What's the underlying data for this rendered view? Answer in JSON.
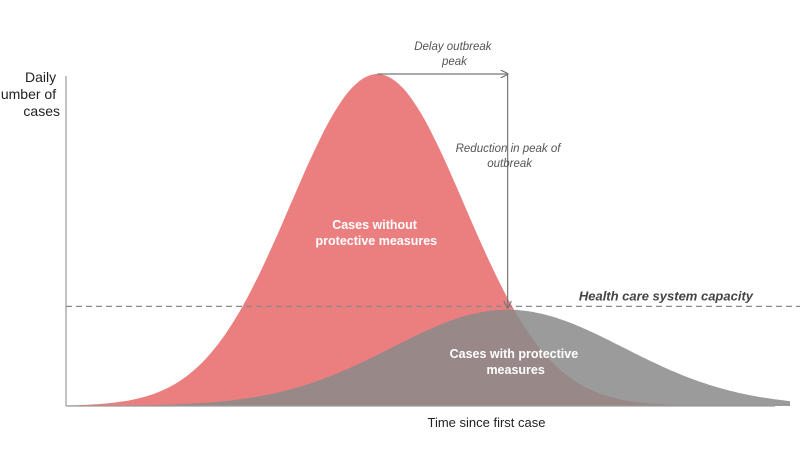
{
  "chart_data": {
    "type": "area",
    "ylabel": [
      "Daily",
      "number of",
      "cases"
    ],
    "xlabel": "Time since first case",
    "x_range": [
      0,
      100
    ],
    "y_range": [
      0,
      100
    ],
    "grid": false,
    "series": [
      {
        "name": "Cases without protective measures",
        "label_lines": [
          "Cases without",
          "protective measures"
        ],
        "color": "#eb7f7f",
        "shape": "gaussian",
        "peak_x": 43,
        "peak_y": 100,
        "spread": 12
      },
      {
        "name": "Cases with protective measures",
        "label_lines": [
          "Cases with protective",
          "measures"
        ],
        "color": "#8a8a8a",
        "shape": "gaussian",
        "peak_x": 61,
        "peak_y": 29,
        "spread": 16
      }
    ],
    "threshold": {
      "label": "Health care system capacity",
      "y": 30,
      "style": "dashed"
    },
    "annotations": [
      {
        "id": "delay",
        "lines": [
          "Delay outbreak",
          "peak"
        ],
        "from_x": 43,
        "to_x": 61,
        "at_y": 100
      },
      {
        "id": "reduction",
        "lines": [
          "Reduction in peak of",
          "outbreak"
        ],
        "x": 61,
        "from_y": 100,
        "to_y": 29
      }
    ]
  }
}
